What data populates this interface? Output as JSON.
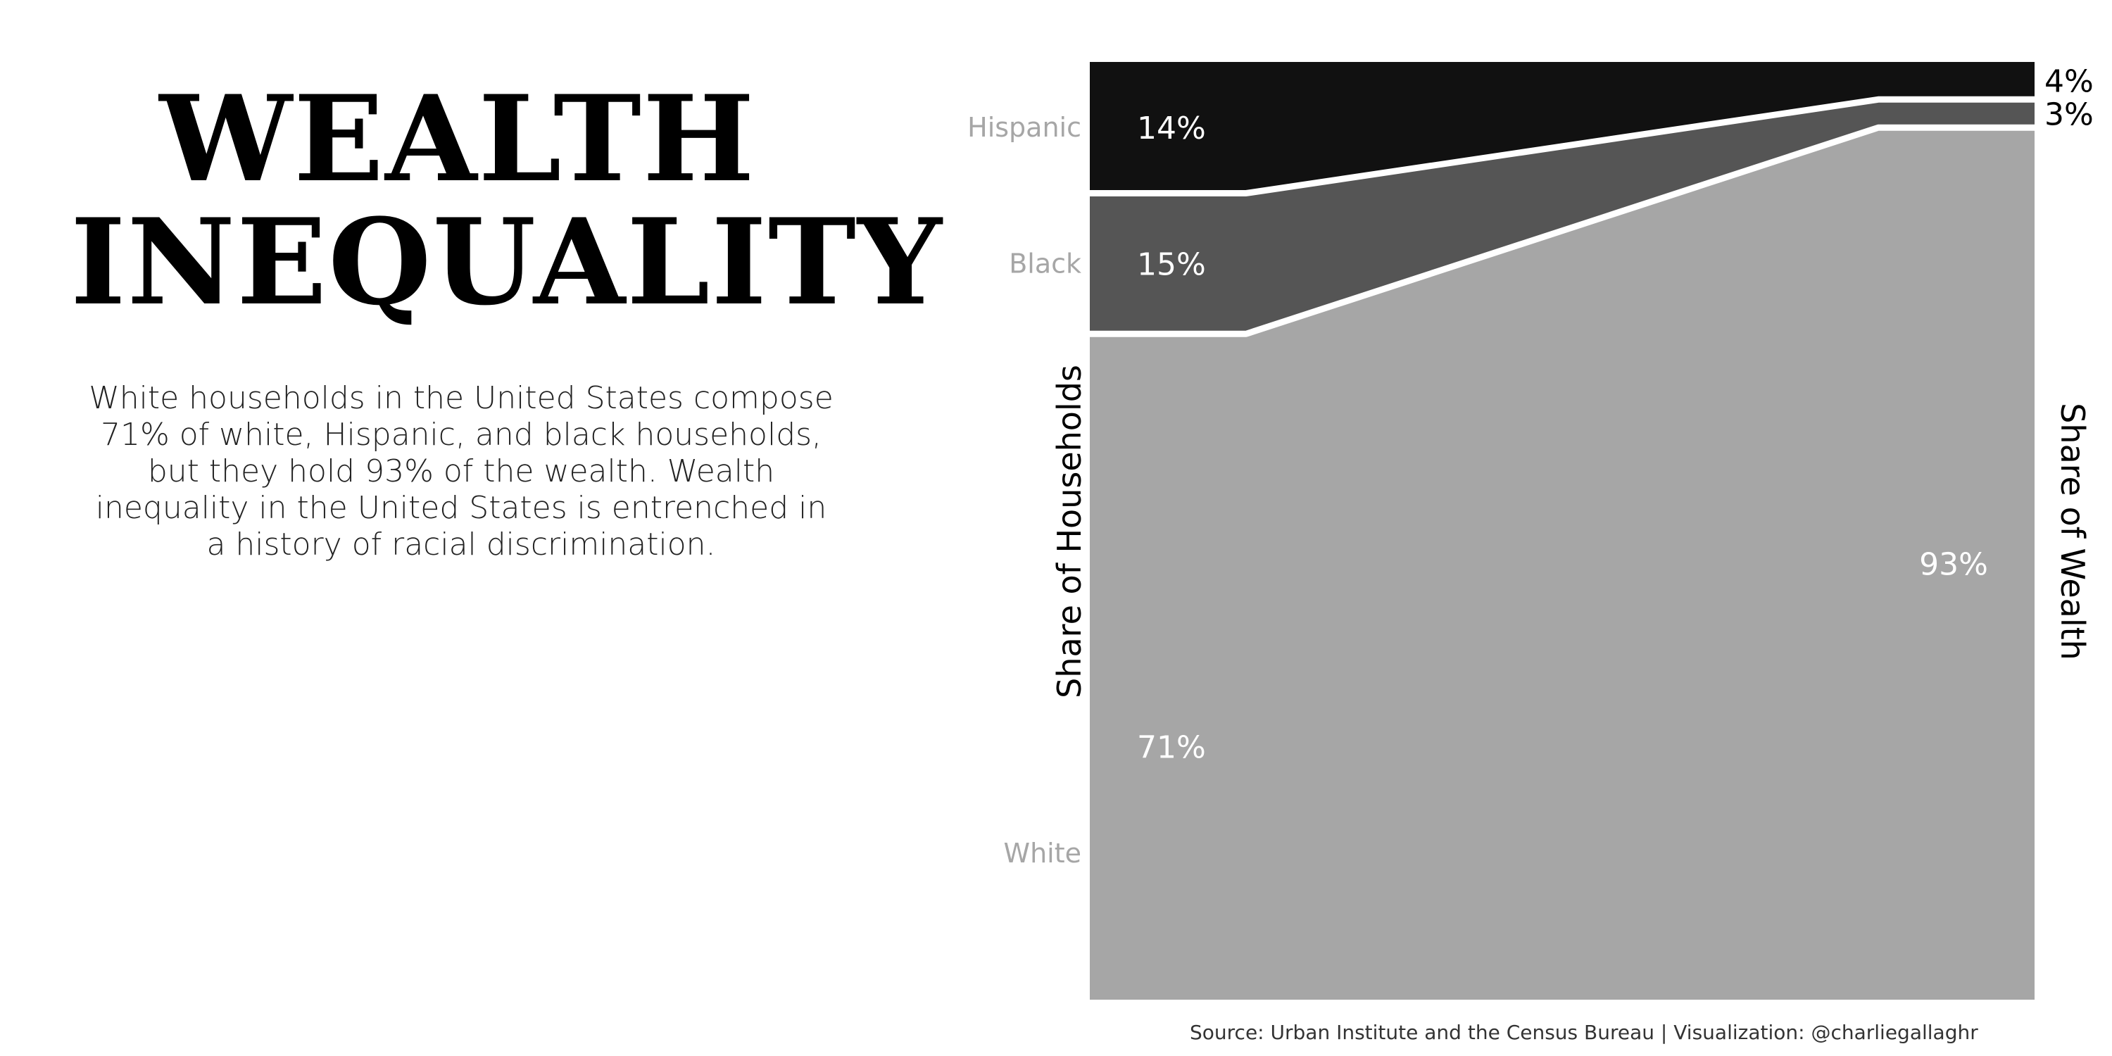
{
  "title": {
    "line1": "WEALTH",
    "line2": "INEQUALITY"
  },
  "description": "White households in the United States compose 71% of white, Hispanic, and black households, but they hold 93% of the wealth. Wealth inequality in the United States is entrenched in a history of racial discrimination.",
  "source": "Source: Urban Institute and the Census Bureau  |  Visualization: @charliegallaghr",
  "chart_data": {
    "type": "area",
    "xlabel_left": "Share of Households",
    "xlabel_right": "Share of Wealth",
    "ylim": [
      0,
      100
    ],
    "categories": [
      "Share of Households",
      "Share of Wealth"
    ],
    "series": [
      {
        "name": "White",
        "households": 71,
        "wealth": 93,
        "household_label": "71%",
        "wealth_label": "93%",
        "color": "#a6a6a6",
        "label_color": "#ffffff"
      },
      {
        "name": "Black",
        "households": 15,
        "wealth": 3,
        "household_label": "15%",
        "wealth_label": "3%",
        "color": "#555555",
        "label_color": "#ffffff"
      },
      {
        "name": "Hispanic",
        "households": 14,
        "wealth": 4,
        "household_label": "14%",
        "wealth_label": "4%",
        "color": "#111111",
        "label_color": "#ffffff"
      }
    ],
    "category_label_color": "#a6a6a6",
    "outside_label_color": "#000000",
    "separator_color": "#ffffff"
  }
}
